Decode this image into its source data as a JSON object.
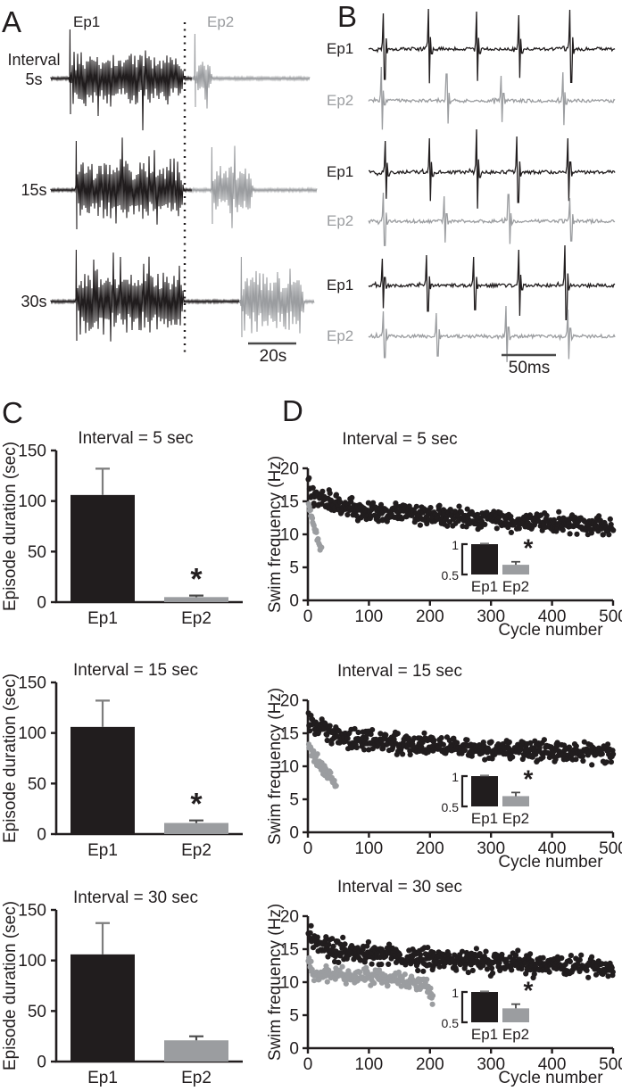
{
  "colors": {
    "black": "#211d1e",
    "gray": "#9b9da0",
    "err_dark": "#555555",
    "err_gray": "#7d7d7d"
  },
  "panels": {
    "a": {
      "label": "A",
      "ep1_label": "Ep1",
      "ep2_label": "Ep2",
      "rows": [
        {
          "label_top": "Interval",
          "label_bottom": "5s"
        },
        {
          "label": "15s"
        },
        {
          "label": "30s"
        }
      ],
      "scale_label": "20s",
      "dotted_line_x": 207,
      "scale_bar": {
        "x1": 278,
        "x2": 332,
        "y": 385
      },
      "traces": [
        {
          "base": 88,
          "black": {
            "pre_start": 57,
            "burst": [
              78,
              205
            ],
            "amp": 26,
            "spike0": 55,
            "end": 215
          },
          "gray": {
            "start": 215,
            "burst": [
              218,
              237
            ],
            "amp": 20,
            "spike0": 50,
            "tail_end": 347
          }
        },
        {
          "base": 213,
          "black": {
            "pre_start": 57,
            "burst": [
              85,
              205
            ],
            "amp": 30,
            "spike0": 55,
            "end": 215
          },
          "gray": {
            "start": 215,
            "burst": [
              237,
              283
            ],
            "amp": 26,
            "spike0": 48,
            "tail_end": 355
          }
        },
        {
          "base": 338,
          "black": {
            "pre_start": 57,
            "burst": [
              85,
              205
            ],
            "amp": 30,
            "spike0": 58,
            "end": 268
          },
          "gray": {
            "start": 268,
            "burst": [
              270,
              340
            ],
            "amp": 28,
            "spike0": 50,
            "tail_end": 352
          }
        }
      ]
    },
    "b": {
      "label": "B",
      "ep1_label": "Ep1",
      "ep2_label": "Ep2",
      "scale_label": "50ms",
      "scale_bar": {
        "x1": 204,
        "x2": 265,
        "y": 398
      },
      "x_range": [
        55,
        332
      ],
      "traces": [
        {
          "y": 55,
          "color": "black",
          "seed": 21,
          "spikes": [
            0.055,
            0.235,
            0.43,
            0.6,
            0.81
          ],
          "amps": [
            40,
            45,
            42,
            38,
            44
          ]
        },
        {
          "y": 113,
          "color": "gray",
          "seed": 22,
          "spikes": [
            0.045,
            0.31,
            0.53,
            0.78
          ],
          "amps": [
            38,
            30,
            28,
            32
          ]
        },
        {
          "y": 193,
          "color": "black",
          "seed": 23,
          "spikes": [
            0.06,
            0.24,
            0.43,
            0.595,
            0.8
          ],
          "amps": [
            35,
            38,
            48,
            40,
            38
          ]
        },
        {
          "y": 248,
          "color": "gray",
          "seed": 24,
          "spikes": [
            0.055,
            0.3,
            0.56,
            0.81
          ],
          "amps": [
            32,
            28,
            30,
            26
          ]
        },
        {
          "y": 320,
          "color": "black",
          "seed": 25,
          "spikes": [
            0.05,
            0.23,
            0.42,
            0.6,
            0.79
          ],
          "amps": [
            30,
            34,
            32,
            40,
            45
          ]
        },
        {
          "y": 377,
          "color": "gray",
          "seed": 26,
          "spikes": [
            0.055,
            0.27,
            0.55,
            0.8
          ],
          "amps": [
            28,
            26,
            34,
            30
          ]
        }
      ]
    },
    "c_label": "C",
    "d_label": "D"
  },
  "chart_data": [
    {
      "id": "c_5s",
      "type": "bar",
      "panel": "C",
      "title": "Interval = 5 sec",
      "ylabel": "Episode duration (sec)",
      "ylim": [
        0,
        150
      ],
      "yticks": [
        0,
        50,
        100,
        150
      ],
      "categories": [
        "Ep1",
        "Ep2"
      ],
      "values": [
        106,
        5
      ],
      "errors": [
        26,
        1.5
      ],
      "bar_colors": [
        "black",
        "gray"
      ],
      "sig": [
        false,
        true
      ],
      "sig_symbol": "*"
    },
    {
      "id": "c_15s",
      "type": "bar",
      "panel": "C",
      "title": "Interval = 15 sec",
      "ylabel": "Episode duration (sec)",
      "ylim": [
        0,
        150
      ],
      "yticks": [
        0,
        50,
        100,
        150
      ],
      "categories": [
        "Ep1",
        "Ep2"
      ],
      "values": [
        106,
        11
      ],
      "errors": [
        26,
        2.5
      ],
      "bar_colors": [
        "black",
        "gray"
      ],
      "sig": [
        false,
        true
      ],
      "sig_symbol": "*"
    },
    {
      "id": "c_30s",
      "type": "bar",
      "panel": "C",
      "title": "Interval = 30 sec",
      "ylabel": "Episode duration (sec)",
      "ylim": [
        0,
        150
      ],
      "yticks": [
        0,
        50,
        100,
        150
      ],
      "categories": [
        "Ep1",
        "Ep2"
      ],
      "values": [
        106,
        21
      ],
      "errors": [
        31,
        4
      ],
      "bar_colors": [
        "black",
        "gray"
      ],
      "sig": [
        false,
        false
      ],
      "sig_symbol": "*"
    },
    {
      "id": "d_5s",
      "type": "scatter",
      "panel": "D",
      "title": "Interval = 5 sec",
      "xlabel": "Cycle number",
      "ylabel": "Swim frequency (Hz)",
      "xlim": [
        0,
        500
      ],
      "xticks": [
        0,
        100,
        200,
        300,
        400,
        500
      ],
      "ylim": [
        0,
        20
      ],
      "yticks": [
        0,
        5,
        10,
        15,
        20
      ],
      "series": [
        {
          "name": "Ep1",
          "color": "black",
          "n": 500,
          "xmax": 500,
          "jitter": 0.75,
          "seed": 101,
          "profile": [
            [
              0,
              17.8
            ],
            [
              10,
              15.8
            ],
            [
              50,
              14.3
            ],
            [
              150,
              13.2
            ],
            [
              300,
              12.2
            ],
            [
              500,
              11.2
            ]
          ]
        },
        {
          "name": "Ep2",
          "color": "gray",
          "n": 22,
          "xmax": 22,
          "jitter": 0.3,
          "seed": 102,
          "profile": [
            [
              0,
              14.5
            ],
            [
              8,
              12.0
            ],
            [
              15,
              9.5
            ],
            [
              22,
              7.6
            ]
          ]
        }
      ],
      "inset": {
        "tick_values": [
          1,
          0.5
        ],
        "tick_labels": [
          "1",
          "0.5"
        ],
        "categories": [
          "Ep1",
          "Ep2"
        ],
        "values": [
          1.0,
          0.66
        ],
        "errors": [
          0.01,
          0.05
        ],
        "bar_colors": [
          "black",
          "gray"
        ],
        "sig": [
          false,
          true
        ],
        "sig_symbol": "*"
      }
    },
    {
      "id": "d_15s",
      "type": "scatter",
      "panel": "D",
      "title": "Interval = 15 sec",
      "xlabel": "Cycle number",
      "ylabel": "Swim frequency (Hz)",
      "xlim": [
        0,
        500
      ],
      "xticks": [
        0,
        100,
        200,
        300,
        400,
        500
      ],
      "ylim": [
        0,
        20
      ],
      "yticks": [
        0,
        5,
        10,
        15,
        20
      ],
      "series": [
        {
          "name": "Ep1",
          "color": "black",
          "n": 500,
          "xmax": 500,
          "jitter": 0.72,
          "seed": 103,
          "profile": [
            [
              0,
              17.5
            ],
            [
              15,
              15.8
            ],
            [
              60,
              14.3
            ],
            [
              150,
              13.5
            ],
            [
              300,
              12.6
            ],
            [
              500,
              11.9
            ]
          ]
        },
        {
          "name": "Ep2",
          "color": "gray",
          "n": 46,
          "xmax": 46,
          "jitter": 0.45,
          "seed": 104,
          "profile": [
            [
              0,
              13.2
            ],
            [
              10,
              11.5
            ],
            [
              25,
              9.8
            ],
            [
              40,
              8.0
            ],
            [
              46,
              7.0
            ]
          ]
        }
      ],
      "inset": {
        "tick_values": [
          1,
          0.5
        ],
        "tick_labels": [
          "1",
          "0.5"
        ],
        "categories": [
          "Ep1",
          "Ep2"
        ],
        "values": [
          1.0,
          0.67
        ],
        "errors": [
          0.01,
          0.06
        ],
        "bar_colors": [
          "black",
          "gray"
        ],
        "sig": [
          false,
          true
        ],
        "sig_symbol": "*"
      }
    },
    {
      "id": "d_30s",
      "type": "scatter",
      "panel": "D",
      "title": "Interval = 30 sec",
      "xlabel": "Cycle number",
      "ylabel": "Swim frequency (Hz)",
      "xlim": [
        0,
        500
      ],
      "xticks": [
        0,
        100,
        200,
        300,
        400,
        500
      ],
      "ylim": [
        0,
        20
      ],
      "yticks": [
        0,
        5,
        10,
        15,
        20
      ],
      "series": [
        {
          "name": "Ep1",
          "color": "black",
          "n": 500,
          "xmax": 500,
          "jitter": 0.78,
          "seed": 105,
          "profile": [
            [
              0,
              16.6
            ],
            [
              40,
              15.0
            ],
            [
              120,
              14.0
            ],
            [
              250,
              13.2
            ],
            [
              400,
              12.6
            ],
            [
              500,
              12.2
            ]
          ]
        },
        {
          "name": "Ep2",
          "color": "gray",
          "n": 200,
          "xmax": 205,
          "jitter": 0.55,
          "seed": 106,
          "profile": [
            [
              0,
              13.3
            ],
            [
              10,
              11.3
            ],
            [
              60,
              11.0
            ],
            [
              120,
              10.6
            ],
            [
              170,
              10.2
            ],
            [
              195,
              9.6
            ],
            [
              200,
              8.8
            ],
            [
              205,
              7.2
            ]
          ]
        }
      ],
      "inset": {
        "tick_values": [
          1,
          0.5
        ],
        "tick_labels": [
          "1",
          "0.5"
        ],
        "categories": [
          "Ep1",
          "Ep2"
        ],
        "values": [
          1.0,
          0.73
        ],
        "errors": [
          0.01,
          0.07
        ],
        "bar_colors": [
          "black",
          "gray"
        ],
        "sig": [
          false,
          true
        ],
        "sig_symbol": "*"
      }
    }
  ]
}
